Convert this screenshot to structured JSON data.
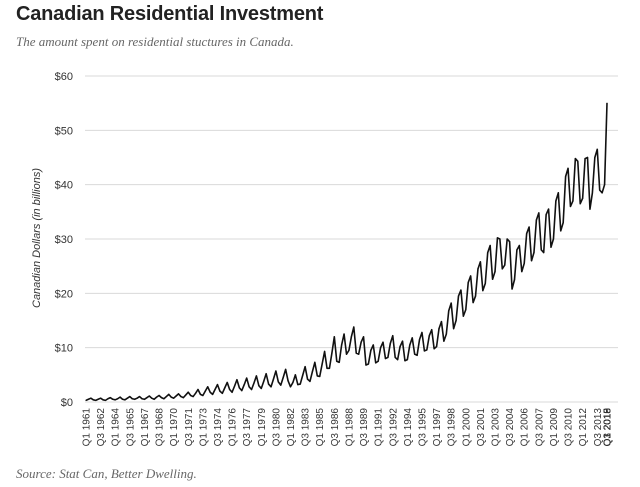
{
  "header": {
    "title": "Canadian Residential Investment",
    "subtitle": "The amount spent on residential stuctures in Canada."
  },
  "footer": {
    "source": "Source: Stat Can, Better Dwelling."
  },
  "chart_data": {
    "type": "line",
    "ylabel": "Canadian Dollars (in billions)",
    "xlabel": "",
    "ylim": [
      0,
      60
    ],
    "y_ticks": [
      "$0",
      "$10",
      "$20",
      "$30",
      "$40",
      "$50",
      "$60"
    ],
    "grid": "horizontal",
    "legend": "none",
    "line_color": "#111111",
    "x_tick_labels": [
      "Q1 1961",
      "Q3 1962",
      "Q1 1964",
      "Q3 1965",
      "Q1 1967",
      "Q3 1968",
      "Q1 1970",
      "Q3 1971",
      "Q1 1973",
      "Q3 1974",
      "Q1 1976",
      "Q3 1977",
      "Q1 1979",
      "Q3 1980",
      "Q1 1982",
      "Q3 1983",
      "Q1 1985",
      "Q3 1986",
      "Q1 1988",
      "Q3 1989",
      "Q1 1991",
      "Q3 1992",
      "Q1 1994",
      "Q3 1995",
      "Q1 1997",
      "Q3 1998",
      "Q1 2000",
      "Q3 2001",
      "Q1 2003",
      "Q3 2004",
      "Q1 2006",
      "Q3 2007",
      "Q1 2009",
      "Q3 2010",
      "Q1 2012",
      "Q3 2013",
      "Q1 2015",
      "Q3 2016",
      "Q1 2018",
      "Q3 2019"
    ],
    "series": [
      {
        "period_start": "Q1 1961",
        "frequency": "quarterly",
        "values": [
          0.3,
          0.5,
          0.7,
          0.4,
          0.3,
          0.5,
          0.7,
          0.4,
          0.3,
          0.6,
          0.8,
          0.5,
          0.4,
          0.6,
          0.9,
          0.5,
          0.4,
          0.7,
          1.0,
          0.6,
          0.5,
          0.7,
          1.0,
          0.6,
          0.5,
          0.8,
          1.1,
          0.7,
          0.5,
          0.9,
          1.2,
          0.8,
          0.6,
          1.0,
          1.4,
          0.9,
          0.7,
          1.1,
          1.5,
          1.0,
          0.8,
          1.3,
          1.8,
          1.2,
          1.0,
          1.6,
          2.3,
          1.4,
          1.2,
          2.0,
          2.8,
          1.8,
          1.4,
          2.3,
          3.2,
          2.0,
          1.6,
          2.6,
          3.6,
          2.3,
          1.8,
          2.9,
          4.1,
          2.6,
          2.1,
          3.2,
          4.4,
          2.8,
          2.3,
          3.5,
          4.8,
          3.0,
          2.5,
          3.8,
          5.2,
          3.3,
          2.8,
          4.2,
          5.7,
          3.7,
          3.1,
          4.5,
          6.0,
          3.9,
          2.8,
          3.6,
          5.0,
          3.2,
          3.3,
          4.9,
          6.5,
          4.2,
          3.8,
          5.6,
          7.3,
          4.8,
          4.7,
          7.0,
          9.3,
          6.2,
          6.2,
          9.0,
          12.0,
          7.5,
          7.3,
          10.5,
          12.5,
          8.8,
          9.5,
          12.0,
          13.8,
          9.0,
          8.8,
          11.0,
          12.0,
          6.8,
          7.0,
          9.5,
          10.5,
          7.2,
          7.5,
          10.0,
          11.0,
          8.0,
          8.2,
          10.8,
          12.2,
          8.2,
          7.8,
          10.2,
          11.2,
          7.6,
          7.8,
          10.5,
          11.8,
          8.8,
          8.6,
          11.5,
          12.8,
          9.4,
          9.6,
          12.2,
          13.3,
          9.8,
          10.2,
          13.5,
          14.8,
          11.2,
          12.5,
          16.8,
          18.2,
          13.5,
          15.0,
          19.5,
          20.6,
          15.8,
          17.0,
          22.0,
          23.2,
          18.3,
          19.5,
          24.5,
          25.8,
          20.5,
          21.8,
          27.5,
          28.8,
          22.6,
          24.0,
          30.2,
          30.0,
          24.5,
          25.2,
          30.0,
          29.5,
          20.8,
          22.5,
          28.0,
          28.8,
          24.0,
          25.5,
          31.0,
          32.2,
          26.0,
          27.5,
          33.5,
          34.8,
          28.0,
          27.5,
          34.5,
          35.5,
          28.5,
          30.0,
          37.0,
          38.5,
          31.5,
          33.0,
          41.5,
          43.0,
          36.0,
          37.0,
          44.8,
          44.3,
          36.5,
          37.5,
          44.8,
          45.0,
          35.5,
          38.5,
          45.0,
          46.5,
          39.0,
          38.5,
          40.0,
          55.0
        ]
      }
    ]
  }
}
